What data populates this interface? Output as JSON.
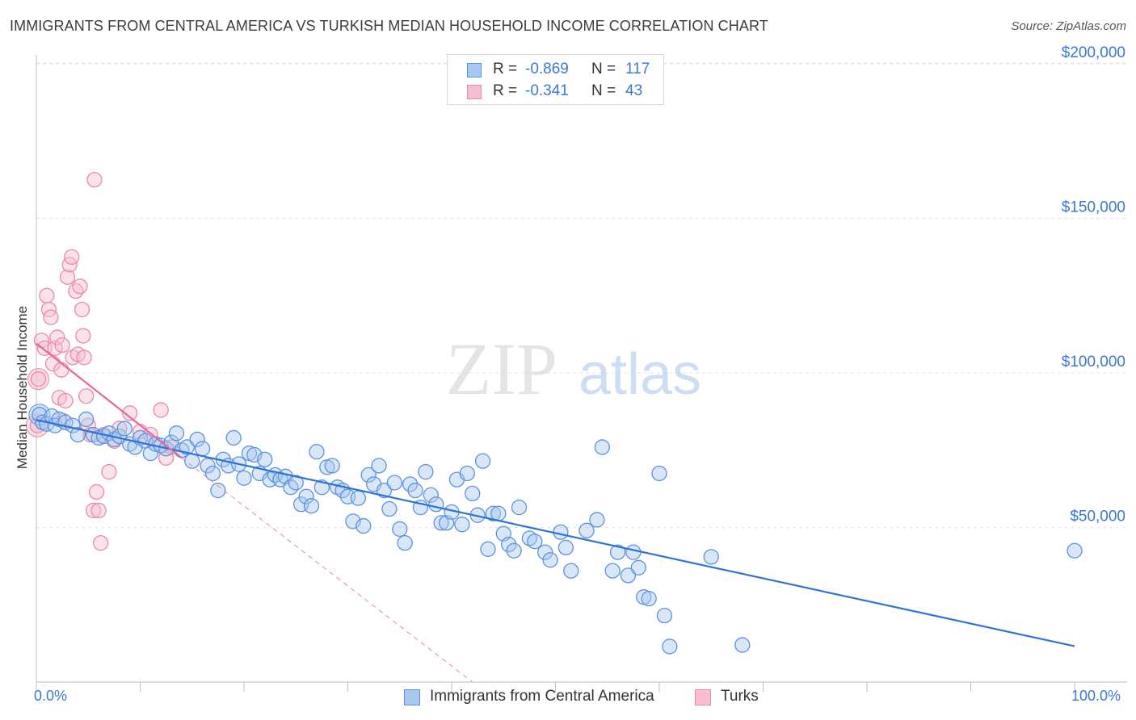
{
  "header": {
    "title": "IMMIGRANTS FROM CENTRAL AMERICA VS TURKISH MEDIAN HOUSEHOLD INCOME CORRELATION CHART",
    "source": "Source: ZipAtlas.com"
  },
  "watermark": {
    "zip": "ZIP",
    "atlas": "atlas"
  },
  "legend_top": {
    "rows": [
      {
        "r_label": "R =",
        "r_value": "-0.869",
        "n_label": "N =",
        "n_value": "117"
      },
      {
        "r_label": "R =",
        "r_value": "-0.341",
        "n_label": "N =",
        "n_value": "43"
      }
    ]
  },
  "colors": {
    "blue": "#5b93de",
    "blue_fill": "#a9c8ef",
    "blue_line": "#2f72d6",
    "pink": "#e98aa8",
    "pink_fill": "#f6bfd0",
    "pink_line": "#e8679a",
    "grid": "#e3e3e3",
    "tick_label": "#3a78d4"
  },
  "chart_data": {
    "type": "scatter",
    "title": "IMMIGRANTS FROM CENTRAL AMERICA VS TURKISH MEDIAN HOUSEHOLD INCOME CORRELATION CHART",
    "xlabel": "",
    "ylabel": "Median Household Income",
    "xlim": [
      0,
      100
    ],
    "ylim": [
      0,
      205000
    ],
    "x_tick_labels": [
      "0.0%",
      "100.0%"
    ],
    "y_ticks": [
      {
        "value": 50000,
        "label": "$50,000"
      },
      {
        "value": 100000,
        "label": "$100,000"
      },
      {
        "value": 150000,
        "label": "$150,000"
      },
      {
        "value": 200000,
        "label": "$200,000"
      }
    ],
    "grid": true,
    "legend_position": "bottom",
    "series": [
      {
        "name": "Immigrants from Central America",
        "color": "blue",
        "trendline": {
          "x": [
            0,
            100
          ],
          "y": [
            84800,
            11600
          ]
        },
        "points": [
          [
            0.3,
            86500
          ],
          [
            0.6,
            84000
          ],
          [
            1.0,
            83500
          ],
          [
            1.5,
            86000
          ],
          [
            1.8,
            83000
          ],
          [
            2.2,
            85000
          ],
          [
            2.8,
            84000
          ],
          [
            3.5,
            83000
          ],
          [
            4.0,
            80000
          ],
          [
            4.8,
            85000
          ],
          [
            5.5,
            80000
          ],
          [
            6.0,
            79000
          ],
          [
            6.5,
            79500
          ],
          [
            7.0,
            80500
          ],
          [
            7.5,
            78500
          ],
          [
            8.0,
            79500
          ],
          [
            8.5,
            82000
          ],
          [
            9.0,
            77000
          ],
          [
            9.5,
            76000
          ],
          [
            10.0,
            79000
          ],
          [
            10.5,
            78000
          ],
          [
            11.0,
            74000
          ],
          [
            11.5,
            77000
          ],
          [
            12.0,
            76500
          ],
          [
            12.5,
            75500
          ],
          [
            13.0,
            77500
          ],
          [
            13.5,
            80500
          ],
          [
            14.0,
            75000
          ],
          [
            14.5,
            76000
          ],
          [
            15.0,
            71500
          ],
          [
            15.5,
            78500
          ],
          [
            16.0,
            75500
          ],
          [
            16.5,
            70000
          ],
          [
            17.0,
            67500
          ],
          [
            17.5,
            62000
          ],
          [
            18.0,
            72000
          ],
          [
            18.5,
            70000
          ],
          [
            19.0,
            79000
          ],
          [
            19.5,
            70500
          ],
          [
            20.0,
            66000
          ],
          [
            20.5,
            74000
          ],
          [
            21.0,
            73500
          ],
          [
            21.5,
            67500
          ],
          [
            22.0,
            72000
          ],
          [
            22.5,
            65500
          ],
          [
            23.0,
            67000
          ],
          [
            23.5,
            65500
          ],
          [
            24.0,
            66500
          ],
          [
            24.5,
            63000
          ],
          [
            25.0,
            64500
          ],
          [
            25.5,
            57500
          ],
          [
            26.0,
            60000
          ],
          [
            26.5,
            57000
          ],
          [
            27.0,
            74500
          ],
          [
            27.5,
            63000
          ],
          [
            28.0,
            69500
          ],
          [
            28.5,
            70000
          ],
          [
            29.0,
            63000
          ],
          [
            29.5,
            62000
          ],
          [
            30.0,
            60000
          ],
          [
            30.5,
            52000
          ],
          [
            31.0,
            59500
          ],
          [
            31.5,
            50500
          ],
          [
            32.0,
            67000
          ],
          [
            32.5,
            64000
          ],
          [
            33.0,
            70000
          ],
          [
            33.5,
            62000
          ],
          [
            34.0,
            56000
          ],
          [
            34.5,
            64500
          ],
          [
            35.0,
            49500
          ],
          [
            35.5,
            45000
          ],
          [
            36.0,
            64000
          ],
          [
            36.5,
            62000
          ],
          [
            37.0,
            56500
          ],
          [
            37.5,
            68000
          ],
          [
            38.0,
            60500
          ],
          [
            38.5,
            57500
          ],
          [
            39.0,
            51500
          ],
          [
            39.5,
            51500
          ],
          [
            40.0,
            55000
          ],
          [
            40.5,
            65500
          ],
          [
            41.0,
            51000
          ],
          [
            41.5,
            67500
          ],
          [
            42.0,
            61000
          ],
          [
            42.5,
            54000
          ],
          [
            43.0,
            71500
          ],
          [
            43.5,
            43000
          ],
          [
            44.0,
            54500
          ],
          [
            44.5,
            54500
          ],
          [
            45.0,
            48000
          ],
          [
            45.5,
            44500
          ],
          [
            46.0,
            42500
          ],
          [
            46.5,
            56500
          ],
          [
            47.5,
            46500
          ],
          [
            48.0,
            45500
          ],
          [
            49.0,
            42000
          ],
          [
            49.5,
            39500
          ],
          [
            50.5,
            48500
          ],
          [
            51.0,
            43500
          ],
          [
            51.5,
            36000
          ],
          [
            53.0,
            49000
          ],
          [
            54.0,
            52500
          ],
          [
            54.5,
            76000
          ],
          [
            55.5,
            36000
          ],
          [
            56.0,
            42000
          ],
          [
            57.0,
            34500
          ],
          [
            57.5,
            42000
          ],
          [
            58.0,
            37000
          ],
          [
            58.5,
            27500
          ],
          [
            59.0,
            27000
          ],
          [
            60.0,
            67500
          ],
          [
            60.5,
            21500
          ],
          [
            61.0,
            11500
          ],
          [
            65.0,
            40500
          ],
          [
            68.0,
            12000
          ],
          [
            100.0,
            42500
          ]
        ]
      },
      {
        "name": "Turks",
        "color": "pink",
        "trendline": {
          "x": [
            0,
            14
          ],
          "y": [
            109500,
            72500
          ]
        },
        "trendline_dashed": {
          "x": [
            14,
            42
          ],
          "y": [
            72500,
            -1500
          ]
        },
        "points": [
          [
            0.1,
            83000
          ],
          [
            0.2,
            98000
          ],
          [
            0.5,
            110500
          ],
          [
            0.8,
            108000
          ],
          [
            1.0,
            125000
          ],
          [
            1.2,
            120500
          ],
          [
            1.4,
            118000
          ],
          [
            1.6,
            103000
          ],
          [
            1.8,
            108000
          ],
          [
            2.0,
            111500
          ],
          [
            2.2,
            92000
          ],
          [
            2.4,
            101000
          ],
          [
            2.5,
            109000
          ],
          [
            2.6,
            84500
          ],
          [
            2.8,
            91000
          ],
          [
            3.0,
            131000
          ],
          [
            3.2,
            135000
          ],
          [
            3.4,
            137500
          ],
          [
            3.5,
            105000
          ],
          [
            3.8,
            126500
          ],
          [
            4.0,
            106000
          ],
          [
            4.2,
            128000
          ],
          [
            4.4,
            120500
          ],
          [
            4.5,
            112000
          ],
          [
            4.6,
            105000
          ],
          [
            4.8,
            92500
          ],
          [
            5.0,
            83000
          ],
          [
            5.2,
            80000
          ],
          [
            5.5,
            55500
          ],
          [
            5.6,
            162500
          ],
          [
            5.8,
            61500
          ],
          [
            6.0,
            55500
          ],
          [
            6.2,
            45000
          ],
          [
            6.5,
            80000
          ],
          [
            7.0,
            68000
          ],
          [
            7.5,
            78000
          ],
          [
            8.0,
            82000
          ],
          [
            9.0,
            87000
          ],
          [
            10.0,
            81000
          ],
          [
            11.0,
            80000
          ],
          [
            12.0,
            88000
          ],
          [
            12.5,
            72500
          ],
          [
            13.0,
            76000
          ]
        ]
      }
    ]
  },
  "legend_bottom": {
    "items": [
      {
        "label": "Immigrants from Central America"
      },
      {
        "label": "Turks"
      }
    ]
  }
}
